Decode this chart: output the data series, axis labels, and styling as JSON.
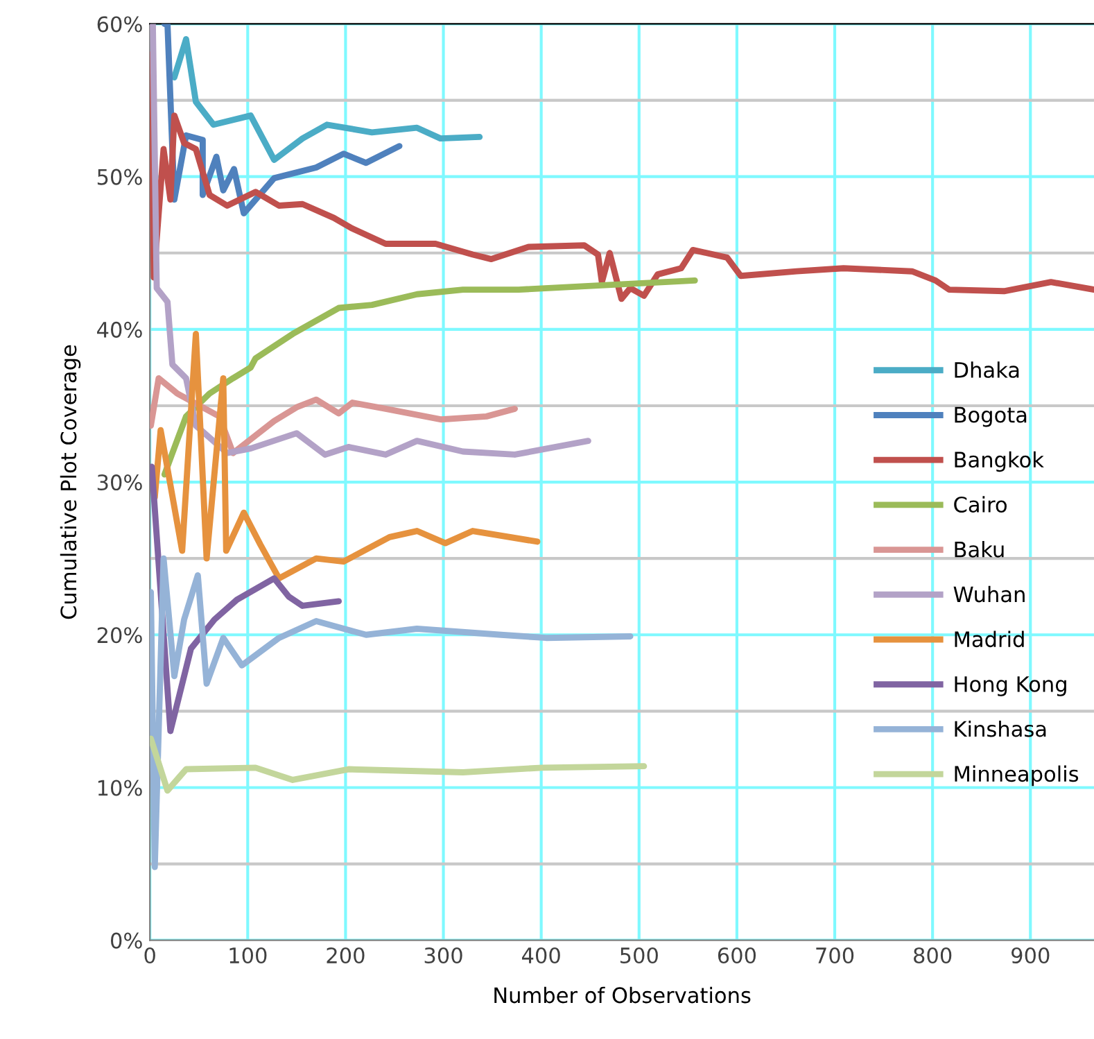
{
  "chart_data": {
    "type": "line",
    "xlabel": "Number of Observations",
    "ylabel": "Cumulative Plot Coverage",
    "xlim": [
      0,
      965
    ],
    "ylim": [
      0,
      60
    ],
    "xticks": [
      0,
      100,
      200,
      300,
      400,
      500,
      600,
      700,
      800,
      900
    ],
    "yticks": [
      {
        "value": 0,
        "label": "0%"
      },
      {
        "value": 10,
        "label": "10%"
      },
      {
        "value": 20,
        "label": "20%"
      },
      {
        "value": 30,
        "label": "30%"
      },
      {
        "value": 40,
        "label": "40%"
      },
      {
        "value": 50,
        "label": "50%"
      },
      {
        "value": 60,
        "label": "60%"
      }
    ],
    "grid": true,
    "legend": "right",
    "marker": "none",
    "line_style": "solid",
    "series": [
      {
        "name": "Dhaka",
        "color": "#4bacc6",
        "x": [
          25,
          37,
          47,
          65,
          103,
          127,
          156,
          181,
          227,
          273,
          297,
          337
        ],
        "values": [
          56.5,
          59,
          54.9,
          53.4,
          54,
          51.1,
          52.5,
          53.4,
          52.9,
          53.2,
          52.5,
          52.6
        ]
      },
      {
        "name": "Bogota",
        "color": "#4f81bd",
        "x": [
          15,
          18,
          25,
          37,
          54,
          54,
          68,
          75,
          86,
          96,
          127,
          170,
          198,
          221,
          255
        ],
        "values": [
          60,
          60,
          48.5,
          52.7,
          52.4,
          48.8,
          51.3,
          49.1,
          50.5,
          47.6,
          49.9,
          50.6,
          51.5,
          50.9,
          52
        ]
      },
      {
        "name": "Bangkok",
        "color": "#c0504d",
        "x": [
          1,
          4,
          14,
          21,
          25,
          35,
          47,
          61,
          79,
          108,
          132,
          156,
          188,
          207,
          241,
          292,
          330,
          349,
          387,
          444,
          458,
          462,
          470,
          482,
          491,
          505,
          519,
          543,
          555,
          590,
          604,
          661,
          709,
          779,
          803,
          817,
          873,
          921,
          965
        ],
        "values": [
          58,
          43.4,
          51.8,
          48.5,
          54,
          52.2,
          51.8,
          48.8,
          48.1,
          49,
          48.1,
          48.2,
          47.3,
          46.6,
          45.6,
          45.6,
          44.9,
          44.6,
          45.4,
          45.5,
          44.9,
          43.1,
          45,
          42,
          42.7,
          42.2,
          43.6,
          44,
          45.2,
          44.7,
          43.5,
          43.8,
          44,
          43.8,
          43.2,
          42.6,
          42.5,
          43.1,
          42.6
        ]
      },
      {
        "name": "Cairo",
        "color": "#9bbb59",
        "x": [
          15,
          23,
          37,
          61,
          85,
          103,
          108,
          146,
          193,
          227,
          273,
          320,
          377,
          557
        ],
        "values": [
          30.5,
          31.9,
          34.3,
          35.8,
          36.8,
          37.5,
          38.1,
          39.7,
          41.4,
          41.6,
          42.3,
          42.6,
          42.6,
          43.2
        ]
      },
      {
        "name": "Baku",
        "color": "#d99694",
        "x": [
          1,
          9,
          28,
          71,
          85,
          127,
          150,
          170,
          193,
          207,
          241,
          298,
          344,
          373
        ],
        "values": [
          33.7,
          36.8,
          35.8,
          34.3,
          31.9,
          34,
          34.9,
          35.4,
          34.5,
          35.2,
          34.8,
          34.1,
          34.3,
          34.8
        ]
      },
      {
        "name": "Wuhan",
        "color": "#b3a2c7",
        "x": [
          3,
          7,
          18,
          23,
          37,
          47,
          79,
          103,
          150,
          179,
          203,
          241,
          273,
          320,
          373,
          448
        ],
        "values": [
          60,
          42.7,
          41.8,
          37.7,
          36.8,
          33.7,
          31.9,
          32.2,
          33.2,
          31.8,
          32.3,
          31.8,
          32.7,
          32,
          31.8,
          32.7
        ]
      },
      {
        "name": "Madrid",
        "color": "#e6923e",
        "x": [
          5,
          11,
          33,
          47,
          58,
          75,
          78,
          96,
          113,
          132,
          170,
          198,
          245,
          273,
          302,
          330,
          396
        ],
        "values": [
          29,
          33.4,
          25.5,
          39.7,
          25,
          36.8,
          25.5,
          28,
          25.9,
          23.7,
          25,
          24.8,
          26.4,
          26.8,
          26,
          26.8,
          26.1
        ]
      },
      {
        "name": "Hong Kong",
        "color": "#8064a2",
        "x": [
          2,
          21,
          42,
          66,
          89,
          127,
          142,
          156,
          193
        ],
        "values": [
          31,
          13.7,
          19.1,
          21,
          22.3,
          23.7,
          22.5,
          21.9,
          22.2
        ]
      },
      {
        "name": "Kinshasa",
        "color": "#95b3d7",
        "x": [
          1,
          5,
          14,
          25,
          35,
          49,
          58,
          75,
          94,
          132,
          170,
          221,
          273,
          359,
          405,
          491
        ],
        "values": [
          22.8,
          4.8,
          25,
          17.3,
          21,
          23.9,
          16.8,
          19.8,
          18,
          19.8,
          20.9,
          20,
          20.4,
          20,
          19.8,
          19.9
        ]
      },
      {
        "name": "Minneapolis",
        "color": "#c3d69b",
        "x": [
          1,
          18,
          37,
          108,
          146,
          203,
          320,
          401,
          505
        ],
        "values": [
          13.2,
          9.8,
          11.2,
          11.3,
          10.5,
          11.2,
          11,
          11.3,
          11.4
        ]
      }
    ]
  }
}
